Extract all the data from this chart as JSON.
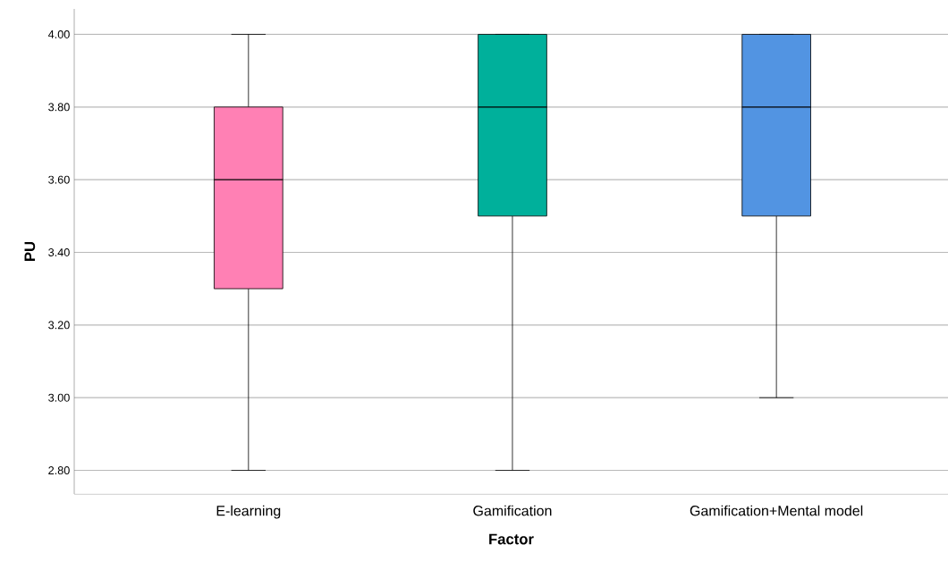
{
  "chart_data": {
    "type": "box",
    "xlabel": "Factor",
    "ylabel": "PU",
    "categories": [
      "E-learning",
      "Gamification",
      "Gamification+Mental model"
    ],
    "colors": [
      "#ff80b4",
      "#00b09b",
      "#5294e2"
    ],
    "boxes": [
      {
        "low": 2.8,
        "q1": 3.3,
        "median": 3.6,
        "q3": 3.8,
        "high": 4.0
      },
      {
        "low": 2.8,
        "q1": 3.5,
        "median": 3.8,
        "q3": 4.0,
        "high": 4.0
      },
      {
        "low": 3.0,
        "q1": 3.5,
        "median": 3.8,
        "q3": 4.0,
        "high": 4.0
      }
    ],
    "ylim": [
      2.735,
      4.07
    ],
    "yticks": [
      {
        "value": 2.8,
        "label": "2.80"
      },
      {
        "value": 3.0,
        "label": "3.00"
      },
      {
        "value": 3.2,
        "label": "3.20"
      },
      {
        "value": 3.4,
        "label": "3.40"
      },
      {
        "value": 3.6,
        "label": "3.60"
      },
      {
        "value": 3.8,
        "label": "3.80"
      },
      {
        "value": 4.0,
        "label": "4.00"
      }
    ],
    "grid": "y"
  }
}
